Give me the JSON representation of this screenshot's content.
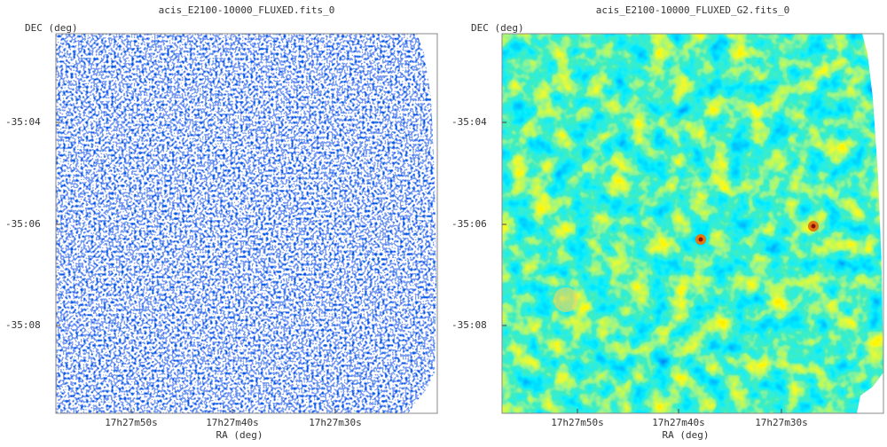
{
  "panels": [
    {
      "title": "acis_E2100-10000_FLUXED.fits_0",
      "y_label": "DEC (deg)",
      "x_label": "RA (deg)",
      "y_ticks": [
        "-35:04",
        "-35:06",
        "-35:08"
      ],
      "x_ticks": [
        "17h27m50s",
        "17h27m40s",
        "17h27m30s"
      ]
    },
    {
      "title": "acis_E2100-10000_FLUXED_G2.fits_0",
      "y_label": "DEC (deg)",
      "x_label": "RA (deg)",
      "y_ticks": [
        "-35:04",
        "-35:06",
        "-35:08"
      ],
      "x_ticks": [
        "17h27m50s",
        "17h27m40s",
        "17h27m30s"
      ]
    }
  ]
}
